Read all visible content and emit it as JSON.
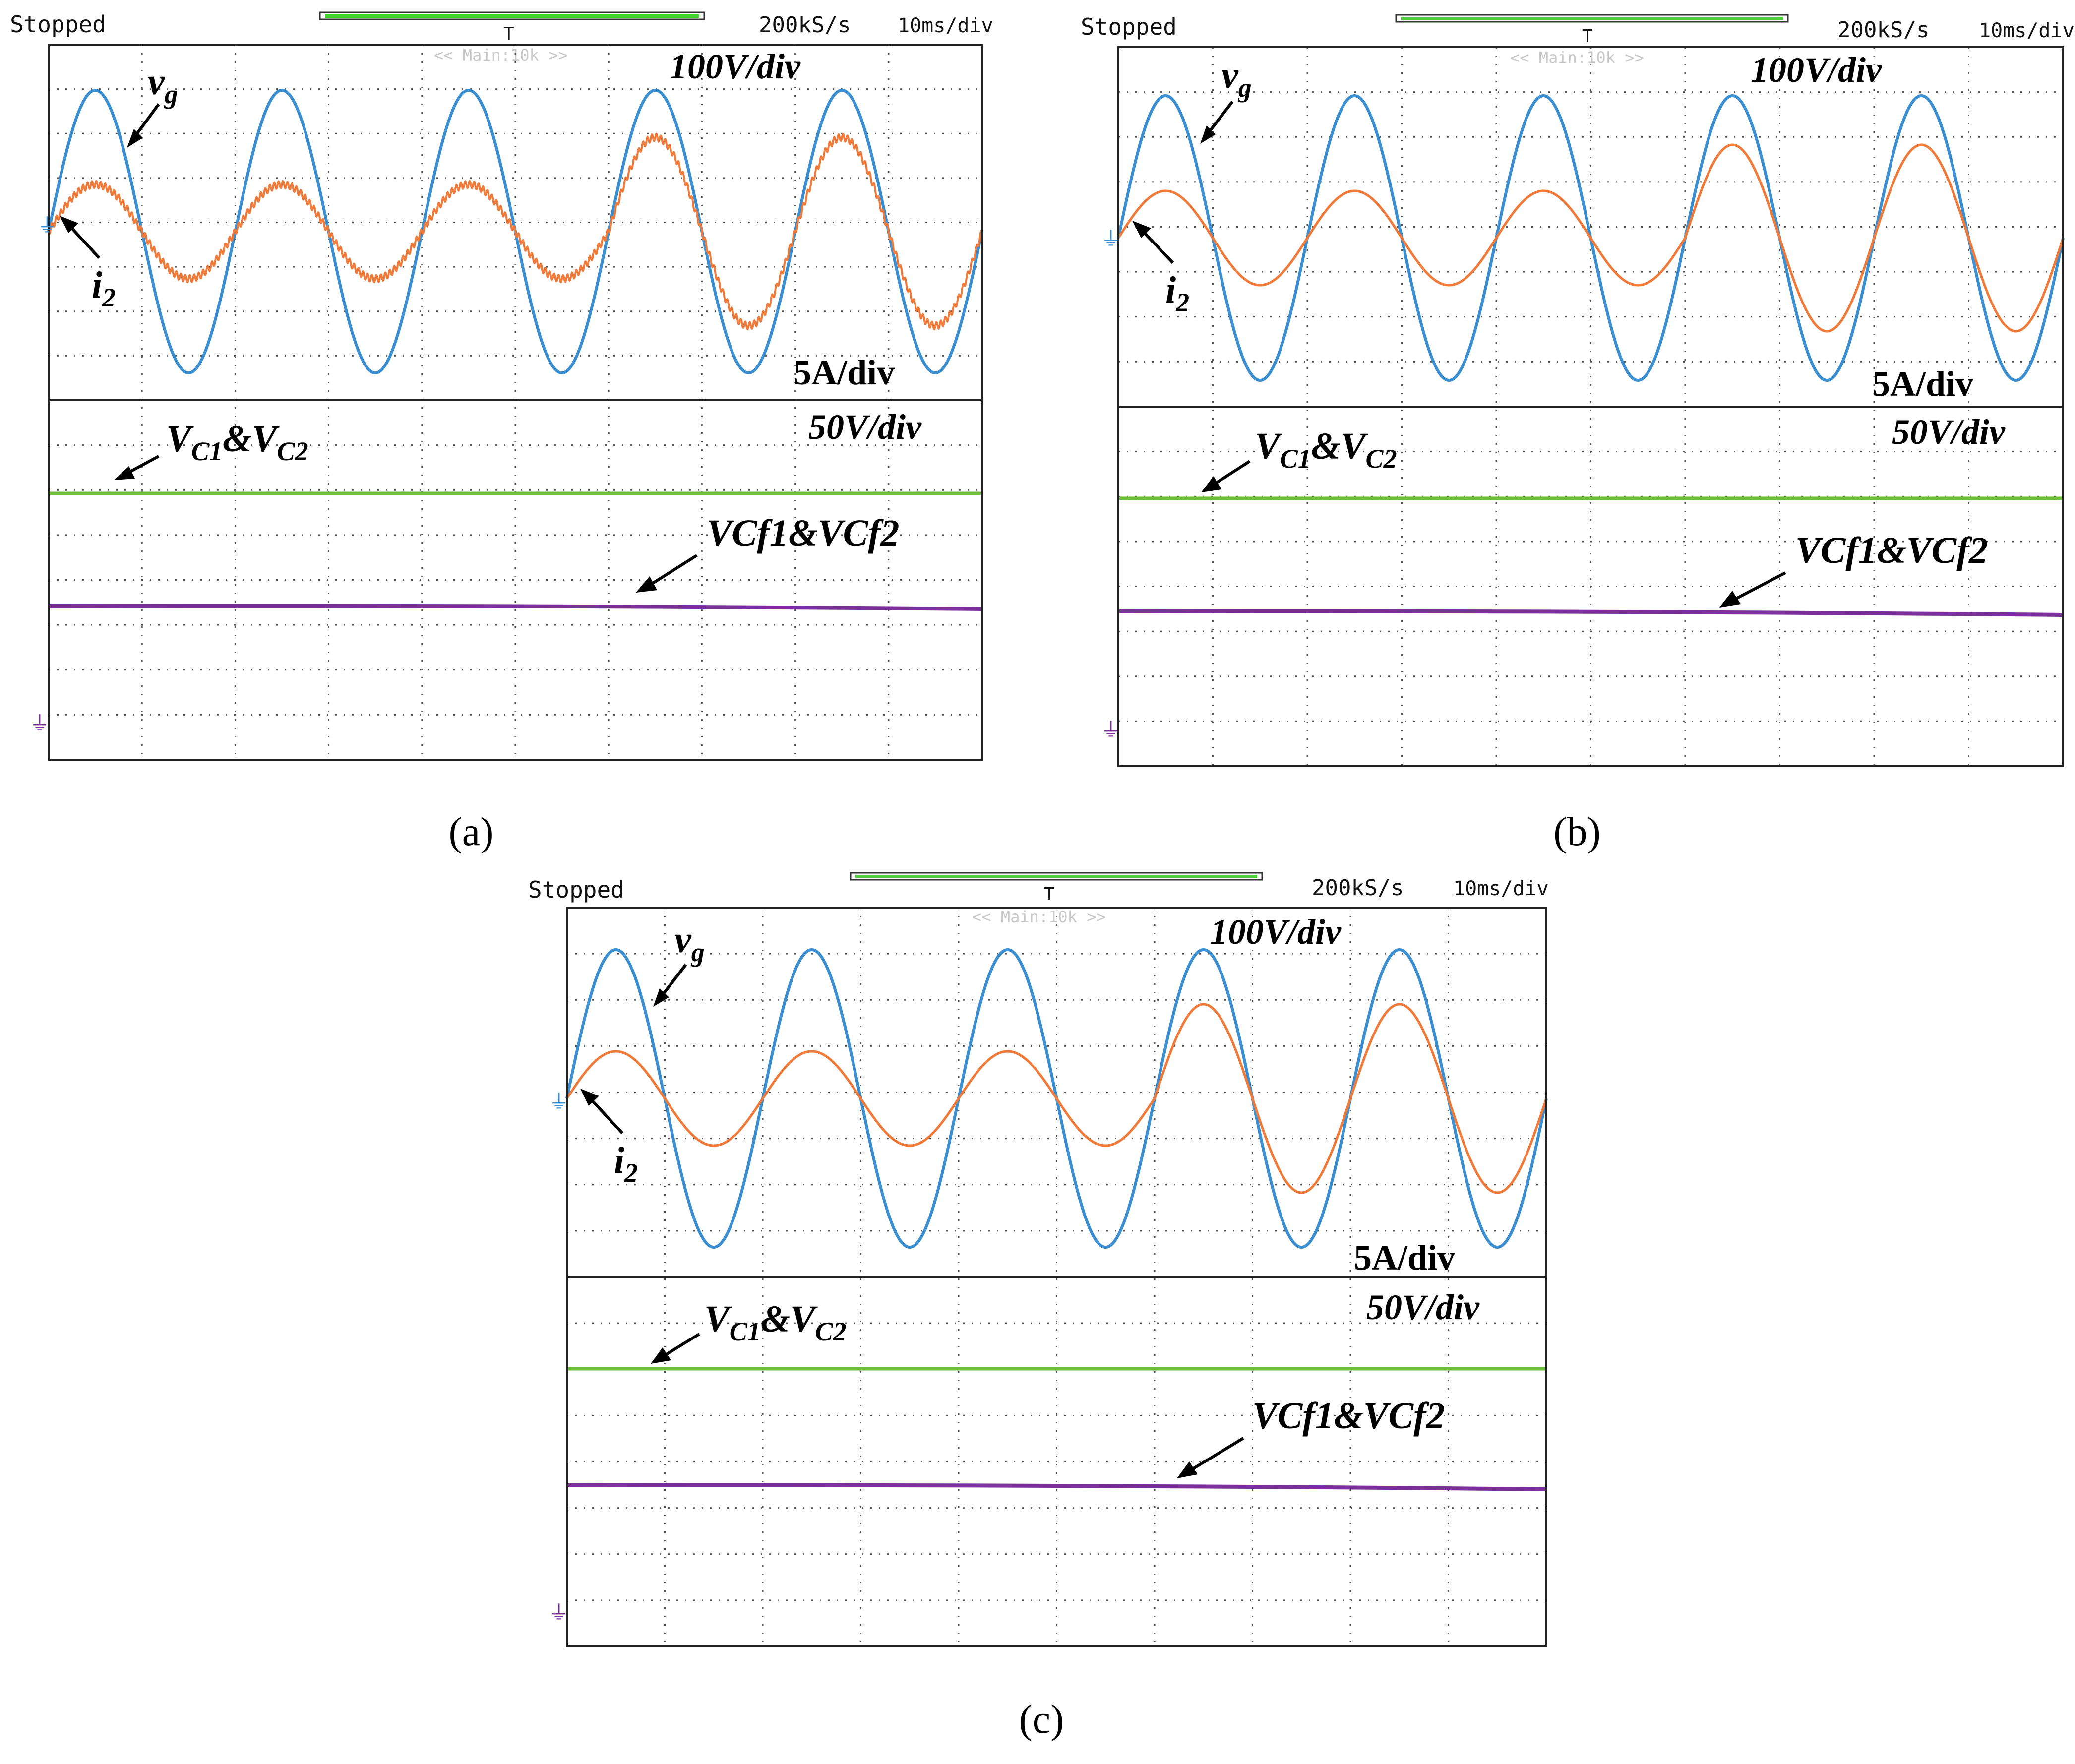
{
  "colors": {
    "vg": "#3b8fd0",
    "i2": "#ef7a3a",
    "vc": "#6fbf3a",
    "vcf": "#7b2f9a",
    "grid": "#555555",
    "trigger_bar": "#4cd03a",
    "frame": "#222222"
  },
  "panels": [
    {
      "id": "a",
      "caption": "(a)",
      "status": "Stopped",
      "sample_rate": "200kS/s",
      "timebase": "10ms/div",
      "main_label": "<< Main:10k >>",
      "label_vg": "v",
      "label_vg_sub": "g",
      "label_i2": "i",
      "label_i2_sub": "2",
      "label_vc": "V",
      "label_vc_sub1": "C1",
      "label_vc_mid": "&V",
      "label_vc_sub2": "C2",
      "label_vcf": "VCf1&VCf2",
      "scale_upper_v": "100V/div",
      "scale_upper_i": "5A/div",
      "scale_lower_v": "50V/div"
    },
    {
      "id": "b",
      "caption": "(b)",
      "status": "Stopped",
      "sample_rate": "200kS/s",
      "timebase": "10ms/div",
      "main_label": "<< Main:10k >>",
      "label_vg": "v",
      "label_vg_sub": "g",
      "label_i2": "i",
      "label_i2_sub": "2",
      "label_vc": "V",
      "label_vc_sub1": "C1",
      "label_vc_mid": "&V",
      "label_vc_sub2": "C2",
      "label_vcf": "VCf1&VCf2",
      "scale_upper_v": "100V/div",
      "scale_upper_i": "5A/div",
      "scale_lower_v": "50V/div"
    },
    {
      "id": "c",
      "caption": "(c)",
      "status": "Stopped",
      "sample_rate": "200kS/s",
      "timebase": "10ms/div",
      "main_label": "<< Main:10k >>",
      "label_vg": "v",
      "label_vg_sub": "g",
      "label_i2": "i",
      "label_i2_sub": "2",
      "label_vc": "V",
      "label_vc_sub1": "C1",
      "label_vc_mid": "&V",
      "label_vc_sub2": "C2",
      "label_vcf": "VCf1&VCf2",
      "scale_upper_v": "100V/div",
      "scale_upper_i": "5A/div",
      "scale_lower_v": "50V/div"
    }
  ],
  "chart_data": [
    {
      "type": "line",
      "panel": "a",
      "x_divisions": 10,
      "x_unit_per_div": "10ms",
      "time_range_ms": [
        0,
        100
      ],
      "series": [
        {
          "name": "vg",
          "waveform": "sine",
          "cycles": 5,
          "amplitude_div": 3.0,
          "unit_per_div": "100V"
        },
        {
          "name": "i2",
          "waveform": "sine",
          "cycles": 5,
          "amplitude_div_before_step": 1.0,
          "amplitude_div_after_step": 2.0,
          "step_time_ms": 60,
          "ripple": "visible",
          "unit_per_div": "5A"
        },
        {
          "name": "VC1&VC2",
          "waveform": "dc",
          "unit_per_div": "50V"
        },
        {
          "name": "VCf1&VCf2",
          "waveform": "dc",
          "unit_per_div": "50V"
        }
      ]
    },
    {
      "type": "line",
      "panel": "b",
      "x_divisions": 10,
      "x_unit_per_div": "10ms",
      "time_range_ms": [
        0,
        100
      ],
      "series": [
        {
          "name": "vg",
          "waveform": "sine",
          "cycles": 5,
          "amplitude_div": 3.0,
          "unit_per_div": "100V"
        },
        {
          "name": "i2",
          "waveform": "sine",
          "cycles": 5,
          "amplitude_div_before_step": 1.0,
          "amplitude_div_after_step": 2.0,
          "step_time_ms": 60,
          "ripple": "none",
          "unit_per_div": "5A"
        },
        {
          "name": "VC1&VC2",
          "waveform": "dc",
          "unit_per_div": "50V"
        },
        {
          "name": "VCf1&VCf2",
          "waveform": "dc",
          "unit_per_div": "50V"
        }
      ]
    },
    {
      "type": "line",
      "panel": "c",
      "x_divisions": 10,
      "x_unit_per_div": "10ms",
      "time_range_ms": [
        0,
        100
      ],
      "series": [
        {
          "name": "vg",
          "waveform": "sine",
          "cycles": 5,
          "amplitude_div": 3.0,
          "unit_per_div": "100V"
        },
        {
          "name": "i2",
          "waveform": "sine",
          "cycles": 5,
          "amplitude_div_before_step": 1.0,
          "amplitude_div_after_step": 2.0,
          "step_time_ms": 60,
          "ripple": "none",
          "unit_per_div": "5A"
        },
        {
          "name": "VC1&VC2",
          "waveform": "dc",
          "unit_per_div": "50V"
        },
        {
          "name": "VCf1&VCf2",
          "waveform": "dc",
          "unit_per_div": "50V"
        }
      ]
    }
  ]
}
